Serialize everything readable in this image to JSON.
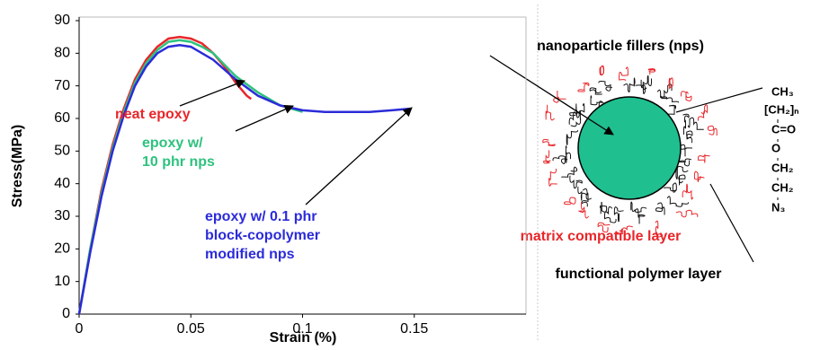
{
  "chart_data": {
    "type": "line",
    "xlabel": "Strain (%)",
    "ylabel": "Stress(MPa)",
    "xlim": [
      0,
      0.2
    ],
    "ylim": [
      0,
      90
    ],
    "xticks": [
      0,
      0.05,
      0.1,
      0.15
    ],
    "yticks": [
      0,
      10,
      20,
      30,
      40,
      50,
      60,
      70,
      80,
      90
    ],
    "series": [
      {
        "name": "neat epoxy",
        "color": "#e8262a",
        "x": [
          0,
          0.005,
          0.01,
          0.015,
          0.02,
          0.025,
          0.03,
          0.035,
          0.04,
          0.045,
          0.05,
          0.055,
          0.06,
          0.065,
          0.07,
          0.075,
          0.077
        ],
        "values": [
          0,
          20,
          38,
          52,
          63,
          72,
          78,
          82,
          84.5,
          85,
          84.5,
          83,
          80,
          76,
          71,
          67,
          66
        ]
      },
      {
        "name": "epoxy w/ 10 phr nps",
        "color": "#2ec27e",
        "x": [
          0,
          0.005,
          0.01,
          0.015,
          0.02,
          0.025,
          0.03,
          0.035,
          0.04,
          0.045,
          0.05,
          0.055,
          0.06,
          0.07,
          0.08,
          0.09,
          0.1
        ],
        "values": [
          0,
          20,
          37,
          51,
          62,
          71,
          77,
          81,
          83.5,
          84,
          83.5,
          82,
          80,
          73,
          68,
          64,
          62
        ]
      },
      {
        "name": "epoxy w/ 0.1 phr block-copolymer modified nps",
        "color": "#2b2bd9",
        "x": [
          0,
          0.005,
          0.01,
          0.015,
          0.02,
          0.025,
          0.03,
          0.035,
          0.04,
          0.045,
          0.05,
          0.06,
          0.07,
          0.08,
          0.09,
          0.1,
          0.11,
          0.12,
          0.13,
          0.14,
          0.148
        ],
        "values": [
          0,
          19,
          36,
          50,
          61,
          70,
          76,
          80,
          82,
          82.5,
          82,
          78,
          72,
          67,
          64,
          62.5,
          62,
          62,
          62,
          62.5,
          63
        ]
      }
    ],
    "annotations": [
      {
        "lines": [
          "neat epoxy"
        ],
        "color": "#e8262a"
      },
      {
        "lines": [
          "epoxy w/",
          "10 phr nps"
        ],
        "color": "#2ec27e"
      },
      {
        "lines": [
          "epoxy w/ 0.1 phr",
          "block-copolymer",
          "modified nps"
        ],
        "color": "#2b2bd9"
      }
    ]
  },
  "diagram": {
    "labels": [
      "nanoparticle fillers (nps)",
      "matrix compatible layer",
      "functional polymer layer"
    ],
    "formula": [
      "CH₃",
      "[CH₂]ₙ",
      "C=O",
      "O",
      "CH₂",
      "CH₂",
      "N₃"
    ]
  }
}
